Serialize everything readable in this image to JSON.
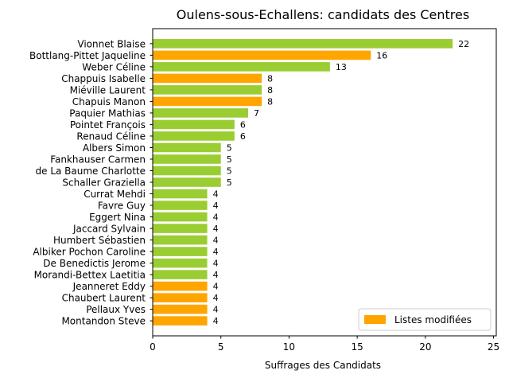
{
  "chart_data": {
    "type": "bar",
    "orientation": "horizontal",
    "title": "Oulens-sous-Echallens: candidats des Centres",
    "xlabel": "Suffrages des Candidats",
    "ylabel": "",
    "xlim": [
      0,
      25.2
    ],
    "xticks": [
      0,
      5,
      10,
      15,
      20,
      25
    ],
    "grid": false,
    "legend": {
      "position": "lower-right",
      "entries": [
        {
          "label": "Listes modifiées",
          "color": "#ffa500"
        }
      ]
    },
    "colors": {
      "default": "#9acd32",
      "modified": "#ffa500"
    },
    "bars": [
      {
        "name": "Vionnet Blaise",
        "value": 22,
        "modified": false
      },
      {
        "name": "Bottlang-Pittet Jaqueline",
        "value": 16,
        "modified": true
      },
      {
        "name": "Weber Céline",
        "value": 13,
        "modified": false
      },
      {
        "name": "Chappuis Isabelle",
        "value": 8,
        "modified": true
      },
      {
        "name": "Miéville Laurent",
        "value": 8,
        "modified": false
      },
      {
        "name": "Chapuis Manon",
        "value": 8,
        "modified": true
      },
      {
        "name": "Paquier Mathias",
        "value": 7,
        "modified": false
      },
      {
        "name": "Pointet François",
        "value": 6,
        "modified": false
      },
      {
        "name": "Renaud Céline",
        "value": 6,
        "modified": false
      },
      {
        "name": "Albers Simon",
        "value": 5,
        "modified": false
      },
      {
        "name": "Fankhauser Carmen",
        "value": 5,
        "modified": false
      },
      {
        "name": "de La Baume Charlotte",
        "value": 5,
        "modified": false
      },
      {
        "name": "Schaller Graziella",
        "value": 5,
        "modified": false
      },
      {
        "name": "Currat Mehdi",
        "value": 4,
        "modified": false
      },
      {
        "name": "Favre Guy",
        "value": 4,
        "modified": false
      },
      {
        "name": "Eggert Nina",
        "value": 4,
        "modified": false
      },
      {
        "name": "Jaccard Sylvain",
        "value": 4,
        "modified": false
      },
      {
        "name": "Humbert Sébastien",
        "value": 4,
        "modified": false
      },
      {
        "name": "Albiker Pochon Caroline",
        "value": 4,
        "modified": false
      },
      {
        "name": "De Benedictis Jerome",
        "value": 4,
        "modified": false
      },
      {
        "name": "Morandi-Bettex Laetitia",
        "value": 4,
        "modified": false
      },
      {
        "name": "Jeanneret Eddy",
        "value": 4,
        "modified": true
      },
      {
        "name": "Chaubert Laurent",
        "value": 4,
        "modified": true
      },
      {
        "name": "Pellaux Yves",
        "value": 4,
        "modified": true
      },
      {
        "name": "Montandon Steve",
        "value": 4,
        "modified": true
      }
    ]
  }
}
